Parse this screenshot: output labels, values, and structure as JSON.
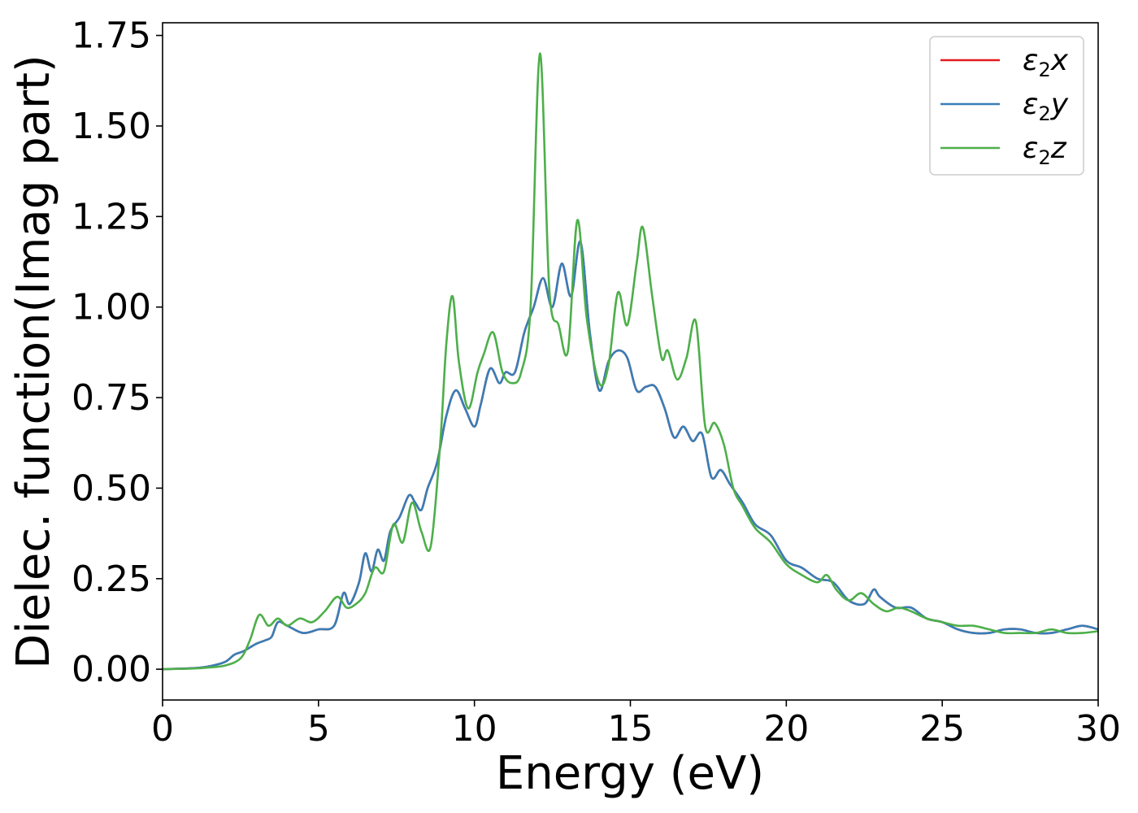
{
  "chart_data": {
    "type": "line",
    "xlabel": "Energy (eV)",
    "ylabel": "Dielec. function(Imag part)",
    "xlim": [
      0,
      30
    ],
    "ylim": [
      -0.085,
      1.785
    ],
    "xticks": [
      0,
      5,
      10,
      15,
      20,
      25,
      30
    ],
    "xtick_labels": [
      "0",
      "5",
      "10",
      "15",
      "20",
      "25",
      "30"
    ],
    "yticks": [
      0.0,
      0.25,
      0.5,
      0.75,
      1.0,
      1.25,
      1.5,
      1.75
    ],
    "ytick_labels": [
      "0.00",
      "0.25",
      "0.50",
      "0.75",
      "1.00",
      "1.25",
      "1.50",
      "1.75"
    ],
    "grid": false,
    "legend_position": "top-right",
    "series": [
      {
        "name": "ε2x",
        "base": "ε",
        "sub": "2",
        "var": "x",
        "color": "#e41a1c",
        "x": [
          0,
          1,
          1.5,
          2,
          2.3,
          2.6,
          3,
          3.3,
          3.5,
          3.7,
          4,
          4.5,
          5,
          5.5,
          5.8,
          6,
          6.3,
          6.5,
          6.7,
          6.9,
          7.1,
          7.3,
          7.6,
          7.9,
          8.1,
          8.3,
          8.5,
          8.8,
          9.1,
          9.4,
          9.7,
          10,
          10.2,
          10.5,
          10.8,
          11,
          11.3,
          11.6,
          11.9,
          12.2,
          12.5,
          12.8,
          13.1,
          13.4,
          13.7,
          14,
          14.3,
          14.6,
          14.9,
          15.2,
          15.5,
          15.8,
          16.1,
          16.4,
          16.7,
          17,
          17.3,
          17.6,
          17.9,
          18.2,
          18.6,
          19,
          19.5,
          20,
          20.5,
          21,
          21.5,
          22,
          22.5,
          22.8,
          23,
          23.5,
          24,
          24.5,
          25,
          25.5,
          26,
          26.5,
          27,
          27.5,
          28,
          28.5,
          29,
          29.5,
          30
        ],
        "y": [
          0,
          0.003,
          0.008,
          0.02,
          0.04,
          0.05,
          0.07,
          0.08,
          0.09,
          0.13,
          0.12,
          0.1,
          0.11,
          0.12,
          0.21,
          0.18,
          0.24,
          0.32,
          0.27,
          0.33,
          0.3,
          0.38,
          0.42,
          0.48,
          0.46,
          0.44,
          0.5,
          0.57,
          0.7,
          0.77,
          0.72,
          0.67,
          0.73,
          0.83,
          0.79,
          0.82,
          0.82,
          0.93,
          1.0,
          1.08,
          1.0,
          1.12,
          1.03,
          1.18,
          0.93,
          0.77,
          0.85,
          0.88,
          0.86,
          0.77,
          0.78,
          0.78,
          0.72,
          0.64,
          0.67,
          0.63,
          0.65,
          0.53,
          0.55,
          0.51,
          0.46,
          0.4,
          0.37,
          0.3,
          0.28,
          0.25,
          0.24,
          0.19,
          0.18,
          0.22,
          0.2,
          0.17,
          0.17,
          0.14,
          0.13,
          0.11,
          0.1,
          0.1,
          0.11,
          0.11,
          0.1,
          0.1,
          0.11,
          0.12,
          0.11
        ]
      },
      {
        "name": "ε2y",
        "base": "ε",
        "sub": "2",
        "var": "y",
        "color": "#377eb8",
        "x": [
          0,
          1,
          1.5,
          2,
          2.3,
          2.6,
          3,
          3.3,
          3.5,
          3.7,
          4,
          4.5,
          5,
          5.5,
          5.8,
          6,
          6.3,
          6.5,
          6.7,
          6.9,
          7.1,
          7.3,
          7.6,
          7.9,
          8.1,
          8.3,
          8.5,
          8.8,
          9.1,
          9.4,
          9.7,
          10,
          10.2,
          10.5,
          10.8,
          11,
          11.3,
          11.6,
          11.9,
          12.2,
          12.5,
          12.8,
          13.1,
          13.4,
          13.7,
          14,
          14.3,
          14.6,
          14.9,
          15.2,
          15.5,
          15.8,
          16.1,
          16.4,
          16.7,
          17,
          17.3,
          17.6,
          17.9,
          18.2,
          18.6,
          19,
          19.5,
          20,
          20.5,
          21,
          21.5,
          22,
          22.5,
          22.8,
          23,
          23.5,
          24,
          24.5,
          25,
          25.5,
          26,
          26.5,
          27,
          27.5,
          28,
          28.5,
          29,
          29.5,
          30
        ],
        "y": [
          0,
          0.003,
          0.008,
          0.02,
          0.04,
          0.05,
          0.07,
          0.08,
          0.09,
          0.13,
          0.12,
          0.1,
          0.11,
          0.12,
          0.21,
          0.18,
          0.24,
          0.32,
          0.27,
          0.33,
          0.3,
          0.38,
          0.42,
          0.48,
          0.46,
          0.44,
          0.5,
          0.57,
          0.7,
          0.77,
          0.72,
          0.67,
          0.73,
          0.83,
          0.79,
          0.82,
          0.82,
          0.93,
          1.0,
          1.08,
          1.0,
          1.12,
          1.03,
          1.18,
          0.93,
          0.77,
          0.85,
          0.88,
          0.86,
          0.77,
          0.78,
          0.78,
          0.72,
          0.64,
          0.67,
          0.63,
          0.65,
          0.53,
          0.55,
          0.51,
          0.46,
          0.4,
          0.37,
          0.3,
          0.28,
          0.25,
          0.24,
          0.19,
          0.18,
          0.22,
          0.2,
          0.17,
          0.17,
          0.14,
          0.13,
          0.11,
          0.1,
          0.1,
          0.11,
          0.11,
          0.1,
          0.1,
          0.11,
          0.12,
          0.11
        ]
      },
      {
        "name": "ε2z",
        "base": "ε",
        "sub": "2",
        "var": "z",
        "color": "#4daf4a",
        "x": [
          0,
          1,
          1.5,
          2,
          2.5,
          2.8,
          3.1,
          3.4,
          3.7,
          4,
          4.4,
          4.8,
          5.2,
          5.6,
          5.9,
          6.2,
          6.5,
          6.8,
          7.1,
          7.4,
          7.7,
          8,
          8.3,
          8.6,
          8.9,
          9.1,
          9.3,
          9.5,
          9.8,
          10.1,
          10.3,
          10.6,
          10.9,
          11.2,
          11.5,
          11.8,
          12.1,
          12.4,
          12.7,
          13,
          13.3,
          13.6,
          14,
          14.3,
          14.6,
          14.9,
          15.2,
          15.4,
          15.7,
          16,
          16.2,
          16.5,
          16.8,
          17.1,
          17.4,
          17.7,
          18,
          18.3,
          18.6,
          19,
          19.5,
          20,
          20.5,
          21,
          21.3,
          21.6,
          22,
          22.4,
          22.8,
          23.2,
          23.6,
          24,
          24.5,
          25,
          25.5,
          26,
          26.5,
          27,
          27.5,
          28,
          28.5,
          29,
          29.5,
          30
        ],
        "y": [
          0,
          0.002,
          0.005,
          0.01,
          0.03,
          0.08,
          0.15,
          0.12,
          0.14,
          0.12,
          0.14,
          0.13,
          0.16,
          0.2,
          0.17,
          0.18,
          0.21,
          0.28,
          0.27,
          0.4,
          0.35,
          0.46,
          0.38,
          0.34,
          0.62,
          0.9,
          1.03,
          0.85,
          0.72,
          0.82,
          0.87,
          0.93,
          0.82,
          0.79,
          0.82,
          1.0,
          1.7,
          1.05,
          0.95,
          0.88,
          1.24,
          0.97,
          0.79,
          0.84,
          1.04,
          0.95,
          1.12,
          1.22,
          1.03,
          0.86,
          0.88,
          0.8,
          0.86,
          0.96,
          0.67,
          0.68,
          0.62,
          0.5,
          0.45,
          0.39,
          0.35,
          0.29,
          0.26,
          0.24,
          0.26,
          0.22,
          0.19,
          0.21,
          0.18,
          0.16,
          0.17,
          0.16,
          0.14,
          0.13,
          0.12,
          0.12,
          0.11,
          0.1,
          0.1,
          0.1,
          0.11,
          0.1,
          0.1,
          0.105
        ]
      }
    ]
  }
}
